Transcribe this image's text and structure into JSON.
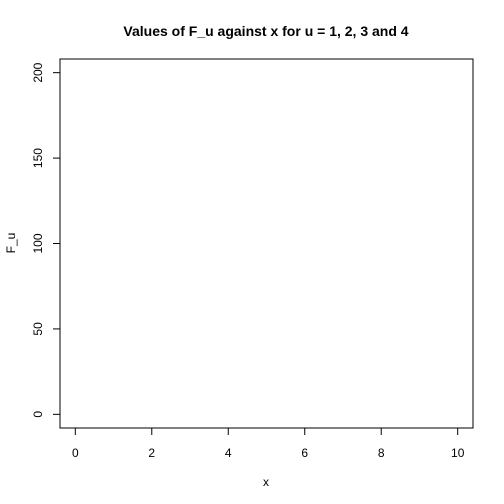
{
  "chart_data": {
    "type": "line",
    "title": "Values of F_u against x for u = 1, 2, 3 and 4",
    "xlabel": "x",
    "ylabel": "F_u",
    "xlim": [
      -0.4,
      10.4
    ],
    "ylim": [
      -8,
      208
    ],
    "x_ticks": [
      0,
      2,
      4,
      6,
      8,
      10
    ],
    "y_ticks": [
      0,
      50,
      100,
      150,
      200
    ],
    "grid": false,
    "series": []
  }
}
